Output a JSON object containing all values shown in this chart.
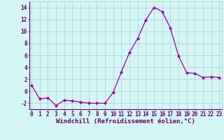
{
  "x": [
    0,
    1,
    2,
    3,
    4,
    5,
    6,
    7,
    8,
    9,
    10,
    11,
    12,
    13,
    14,
    15,
    16,
    17,
    18,
    19,
    20,
    21,
    22,
    23
  ],
  "y": [
    1,
    -1.3,
    -1.1,
    -2.4,
    -1.5,
    -1.6,
    -1.8,
    -2.0,
    -2.0,
    -2.0,
    -0.2,
    3.2,
    6.5,
    8.8,
    11.9,
    14.0,
    13.3,
    10.6,
    5.9,
    3.1,
    3.0,
    2.3,
    2.4,
    2.3
  ],
  "line_color": "#990099",
  "marker": "D",
  "marker_size": 2.0,
  "bg_color": "#d4f5f5",
  "grid_color": "#aacccc",
  "xlabel": "Windchill (Refroidissement éolien,°C)",
  "xlabel_color": "#660066",
  "xlabel_fontsize": 6.5,
  "yticks": [
    -2,
    0,
    2,
    4,
    6,
    8,
    10,
    12,
    14
  ],
  "xticks": [
    0,
    1,
    2,
    3,
    4,
    5,
    6,
    7,
    8,
    9,
    10,
    11,
    12,
    13,
    14,
    15,
    16,
    17,
    18,
    19,
    20,
    21,
    22,
    23
  ],
  "tick_color": "#660066",
  "tick_fontsize": 5.5,
  "ylim": [
    -3.0,
    15.0
  ],
  "xlim": [
    -0.3,
    23.3
  ],
  "line_width": 0.9
}
